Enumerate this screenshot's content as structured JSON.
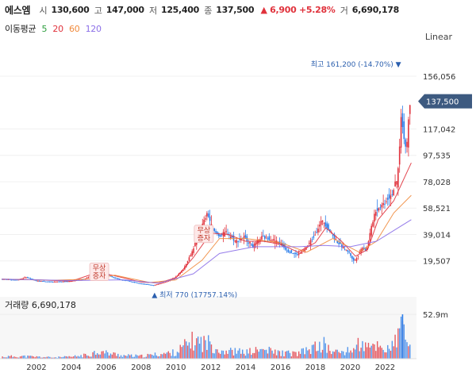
{
  "stock": {
    "name": "에스엠",
    "open_label": "시",
    "open": "130,600",
    "high_label": "고",
    "high": "147,000",
    "low_label": "저",
    "low": "125,400",
    "close_label": "종",
    "close": "137,500",
    "change": "▲ 6,900 +5.28%",
    "volume_label": "거",
    "volume": "6,690,178"
  },
  "moving_average": {
    "label": "이동평균",
    "periods": [
      {
        "value": "5",
        "color": "#2e9e3f"
      },
      {
        "value": "20",
        "color": "#e0323c"
      },
      {
        "value": "60",
        "color": "#f08a3c"
      },
      {
        "value": "120",
        "color": "#8b6fe8"
      }
    ]
  },
  "scale_label": "Linear",
  "colors": {
    "up": "#e0323c",
    "down": "#2b7de9",
    "marker": "#3d5a80",
    "grid": "#f0f0f0"
  },
  "chart_data": {
    "type": "candlestick",
    "price_axis": {
      "ticks": [
        "156,056",
        "117,042",
        "97,535",
        "78,028",
        "58,521",
        "39,014",
        "19,507"
      ],
      "tick_values": [
        156056,
        117042,
        97535,
        78028,
        58521,
        39014,
        19507
      ],
      "range": [
        0,
        176000
      ],
      "current_marker": "137,500",
      "current_value": 137500,
      "position": "right"
    },
    "volume_axis": {
      "label": "거래량 6,690,178",
      "tick": "52.9m",
      "tick_value": 52.9,
      "range": [
        0,
        70
      ]
    },
    "x_axis": {
      "ticks": [
        "2002",
        "2004",
        "2006",
        "2008",
        "2010",
        "2012",
        "2014",
        "2016",
        "2018",
        "2020",
        "2022"
      ],
      "range": [
        2000.0,
        2023.8
      ]
    },
    "annotations": {
      "high": {
        "text": "최고 161,200 (-14.70%)",
        "x": 2023.1,
        "value": 161200
      },
      "low": {
        "text": "최저 770 (17757.14%)",
        "x": 2008.8,
        "value": 770
      },
      "events": [
        {
          "text": "무상증자",
          "x": 2005.6,
          "value": 12000
        },
        {
          "text": "무상증자",
          "x": 2011.6,
          "value": 40000
        }
      ]
    },
    "price_series": [
      [
        2000.0,
        6000
      ],
      [
        2001.0,
        5500
      ],
      [
        2001.5,
        7500
      ],
      [
        2002.0,
        5000
      ],
      [
        2003.0,
        4000
      ],
      [
        2004.0,
        4500
      ],
      [
        2004.8,
        6000
      ],
      [
        2005.3,
        9000
      ],
      [
        2005.5,
        15000
      ],
      [
        2006.0,
        11000
      ],
      [
        2006.5,
        7000
      ],
      [
        2007.0,
        5500
      ],
      [
        2008.0,
        3000
      ],
      [
        2008.8,
        1500
      ],
      [
        2009.5,
        4000
      ],
      [
        2010.0,
        7000
      ],
      [
        2010.5,
        13000
      ],
      [
        2011.0,
        26000
      ],
      [
        2011.5,
        43000
      ],
      [
        2011.9,
        55000
      ],
      [
        2012.2,
        42000
      ],
      [
        2012.6,
        38000
      ],
      [
        2013.0,
        41000
      ],
      [
        2013.5,
        34000
      ],
      [
        2014.0,
        37000
      ],
      [
        2014.5,
        30000
      ],
      [
        2015.0,
        37000
      ],
      [
        2015.5,
        36000
      ],
      [
        2016.0,
        33000
      ],
      [
        2016.5,
        27000
      ],
      [
        2017.0,
        24000
      ],
      [
        2017.5,
        28000
      ],
      [
        2018.0,
        38000
      ],
      [
        2018.5,
        50000
      ],
      [
        2019.0,
        40000
      ],
      [
        2019.5,
        31000
      ],
      [
        2020.0,
        26000
      ],
      [
        2020.3,
        19000
      ],
      [
        2020.8,
        30000
      ],
      [
        2021.0,
        27000
      ],
      [
        2021.5,
        56000
      ],
      [
        2022.0,
        62000
      ],
      [
        2022.5,
        70000
      ],
      [
        2022.8,
        80000
      ],
      [
        2023.0,
        125000
      ],
      [
        2023.1,
        118000
      ],
      [
        2023.3,
        100000
      ],
      [
        2023.5,
        137500
      ]
    ],
    "ma_series": {
      "ma20": [
        [
          2000,
          6000
        ],
        [
          2002,
          5500
        ],
        [
          2004,
          4600
        ],
        [
          2005.5,
          11000
        ],
        [
          2006.5,
          8500
        ],
        [
          2008,
          3800
        ],
        [
          2009,
          3200
        ],
        [
          2010,
          7000
        ],
        [
          2011,
          22000
        ],
        [
          2012,
          40000
        ],
        [
          2013,
          39000
        ],
        [
          2014,
          34000
        ],
        [
          2015,
          34000
        ],
        [
          2016,
          32000
        ],
        [
          2017,
          26000
        ],
        [
          2018,
          33000
        ],
        [
          2018.6,
          44000
        ],
        [
          2019.5,
          34000
        ],
        [
          2020.3,
          23000
        ],
        [
          2021,
          28000
        ],
        [
          2021.6,
          50000
        ],
        [
          2022.5,
          64000
        ],
        [
          2023,
          78000
        ],
        [
          2023.5,
          92000
        ]
      ],
      "ma60": [
        [
          2000,
          6000
        ],
        [
          2003,
          5200
        ],
        [
          2005,
          6000
        ],
        [
          2006.5,
          9000
        ],
        [
          2008.5,
          3500
        ],
        [
          2010,
          5500
        ],
        [
          2011.5,
          20000
        ],
        [
          2012.5,
          36000
        ],
        [
          2014,
          36000
        ],
        [
          2016,
          33000
        ],
        [
          2017.5,
          26000
        ],
        [
          2019,
          36000
        ],
        [
          2020.5,
          26000
        ],
        [
          2021.5,
          34000
        ],
        [
          2022.5,
          55000
        ],
        [
          2023.5,
          68000
        ]
      ],
      "ma120": [
        [
          2000,
          6000
        ],
        [
          2004,
          5000
        ],
        [
          2007,
          5500
        ],
        [
          2009,
          3000
        ],
        [
          2011,
          10000
        ],
        [
          2012.5,
          25000
        ],
        [
          2014.5,
          30000
        ],
        [
          2017,
          30000
        ],
        [
          2018.5,
          31000
        ],
        [
          2020,
          30000
        ],
        [
          2021.5,
          34000
        ],
        [
          2022.5,
          42000
        ],
        [
          2023.5,
          50000
        ]
      ]
    },
    "volume_series": [
      [
        2000.0,
        3
      ],
      [
        2001.0,
        4
      ],
      [
        2002.0,
        3
      ],
      [
        2003.0,
        2
      ],
      [
        2004.0,
        3
      ],
      [
        2005.0,
        6
      ],
      [
        2005.5,
        12
      ],
      [
        2006.0,
        9
      ],
      [
        2007.0,
        5
      ],
      [
        2008.0,
        4
      ],
      [
        2009.0,
        7
      ],
      [
        2010.0,
        10
      ],
      [
        2010.5,
        20
      ],
      [
        2011.0,
        28
      ],
      [
        2011.5,
        26
      ],
      [
        2012.0,
        24
      ],
      [
        2012.5,
        14
      ],
      [
        2013.0,
        12
      ],
      [
        2014.0,
        10
      ],
      [
        2015.0,
        14
      ],
      [
        2016.0,
        9
      ],
      [
        2017.0,
        8
      ],
      [
        2018.0,
        18
      ],
      [
        2018.5,
        22
      ],
      [
        2019.0,
        10
      ],
      [
        2020.0,
        12
      ],
      [
        2020.5,
        24
      ],
      [
        2021.0,
        16
      ],
      [
        2021.5,
        22
      ],
      [
        2022.0,
        15
      ],
      [
        2022.5,
        20
      ],
      [
        2023.0,
        52.9
      ],
      [
        2023.3,
        30
      ],
      [
        2023.5,
        7
      ]
    ]
  }
}
